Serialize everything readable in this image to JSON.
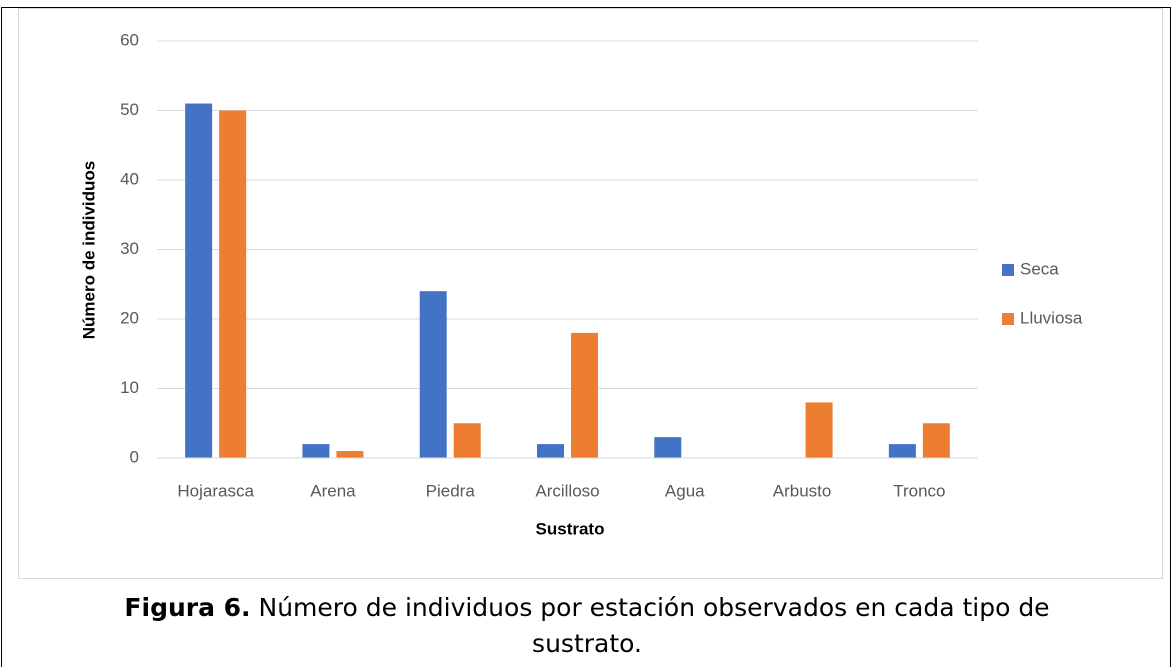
{
  "chart_data": {
    "type": "bar",
    "x_label": "Sustrato",
    "y_label": "Número de individuos",
    "categories": [
      "Hojarasca",
      "Arena",
      "Piedra",
      "Arcilloso",
      "Agua",
      "Arbusto",
      "Tronco"
    ],
    "series": [
      {
        "name": "Seca",
        "color": "#4472c4",
        "values": [
          51,
          2,
          24,
          2,
          3,
          0,
          2
        ]
      },
      {
        "name": "Lluviosa",
        "color": "#ed7d31",
        "values": [
          50,
          1,
          5,
          18,
          0,
          8,
          5
        ]
      }
    ],
    "ylim": [
      0,
      60
    ],
    "yticks": [
      0,
      10,
      20,
      30,
      40,
      50,
      60
    ],
    "grid": true,
    "legend": "right"
  },
  "caption": {
    "label": "Figura 6.",
    "text": "Número de individuos por estación observados en cada tipo de sustrato."
  }
}
